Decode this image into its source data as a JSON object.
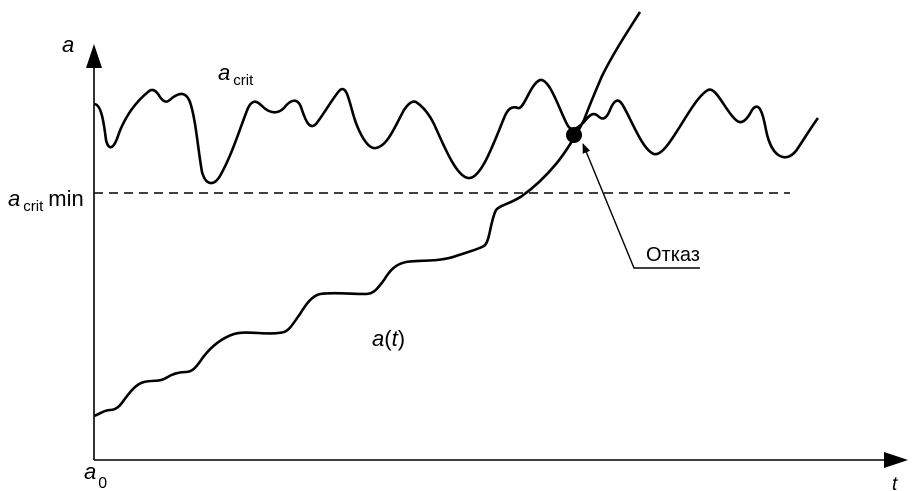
{
  "labels": {
    "y_axis": "a",
    "x_axis": "t",
    "origin_base": "a",
    "origin_sub": "0",
    "a_crit_base": "a",
    "a_crit_sub": "crit",
    "a_crit_min_base": "a",
    "a_crit_min_sub": "crit",
    "a_crit_min_suffix": "min",
    "a_t_base": "a",
    "a_t_open": "(",
    "a_t_var": "t",
    "a_t_close": ")",
    "failure": "Отказ"
  },
  "colors": {
    "ink": "#000000",
    "background": "#ffffff"
  }
}
